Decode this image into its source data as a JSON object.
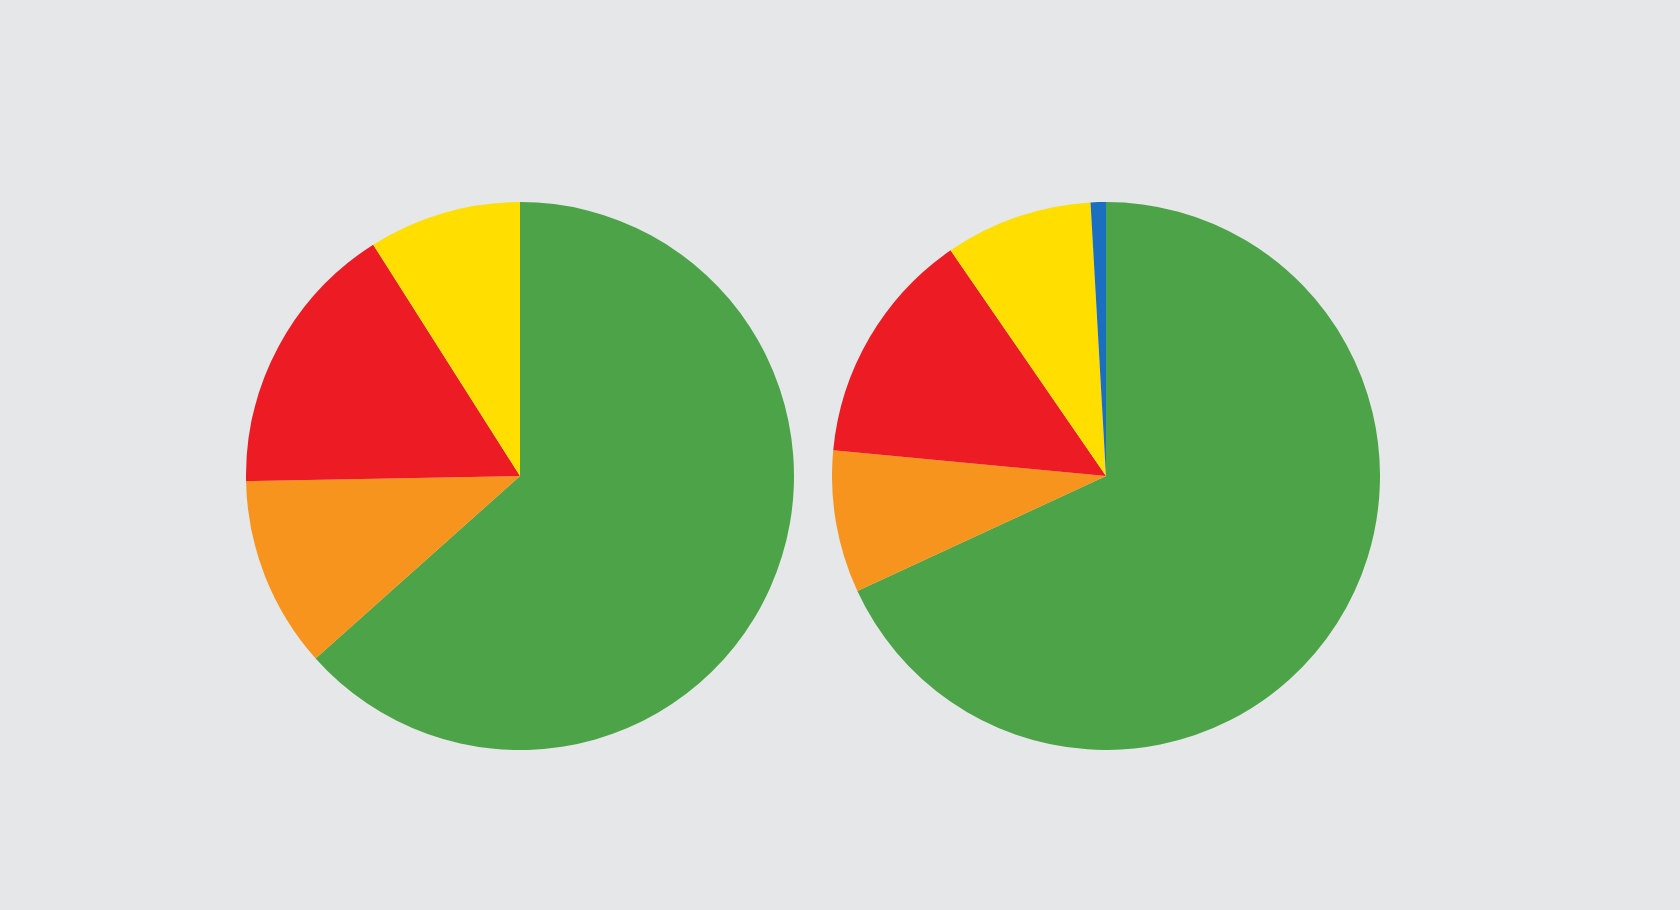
{
  "chart_data": [
    {
      "type": "pie",
      "categories": [
        null,
        null,
        null,
        null
      ],
      "values": [
        63.4,
        11.3,
        16.3,
        9.0
      ],
      "colors": [
        "#4ca348",
        "#f7941d",
        "#ed1c24",
        "#ffde00"
      ]
    },
    {
      "type": "pie",
      "categories": [
        null,
        null,
        null,
        null,
        null
      ],
      "values": [
        68.1,
        8.4,
        13.9,
        8.7,
        0.9
      ],
      "colors": [
        "#4ca348",
        "#f7941d",
        "#ed1c24",
        "#ffde00",
        "#1a6fc0"
      ]
    }
  ]
}
